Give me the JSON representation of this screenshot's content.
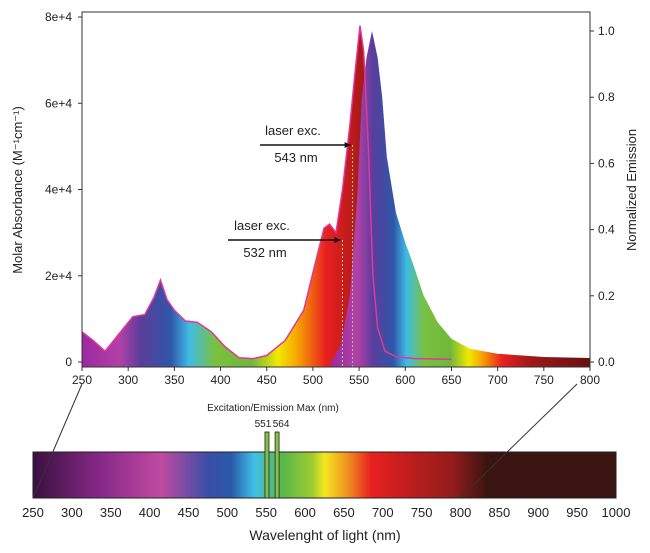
{
  "chart_data": [
    {
      "type": "area",
      "xlabel": "",
      "ylabel_left": "Molar Absorbance (M⁻¹cm⁻¹)",
      "ylabel_right": "Normalized Emission",
      "xlim": [
        250,
        800
      ],
      "ylim_left": [
        0,
        80000
      ],
      "ylim_right": [
        0,
        1.0
      ],
      "x_ticks": [
        "250",
        "300",
        "350",
        "400",
        "450",
        "500",
        "550",
        "600",
        "650",
        "700",
        "750",
        "800"
      ],
      "y_ticks_left": [
        "0",
        "2e+4",
        "4e+4",
        "6e+4",
        "8e+4"
      ],
      "y_ticks_right": [
        "0.0",
        "0.2",
        "0.4",
        "0.6",
        "0.8",
        "1.0"
      ],
      "grid": false,
      "series": [
        {
          "key": "absorbance",
          "axis": "left",
          "color": "#e0379b",
          "x": [
            250,
            262,
            275,
            290,
            305,
            318,
            328,
            335,
            342,
            350,
            362,
            375,
            390,
            405,
            420,
            435,
            450,
            470,
            490,
            505,
            512,
            518,
            525,
            532,
            540,
            546,
            551,
            555,
            560,
            565,
            570,
            578,
            590,
            610,
            650
          ],
          "y": [
            7000,
            5000,
            2500,
            6500,
            10500,
            11000,
            15000,
            19000,
            14500,
            12000,
            9500,
            9200,
            7000,
            3500,
            1000,
            800,
            1500,
            5000,
            12000,
            25000,
            31000,
            32000,
            30000,
            40000,
            55000,
            68000,
            78000,
            72000,
            50000,
            20000,
            8000,
            2500,
            1200,
            800,
            600
          ]
        },
        {
          "key": "emission",
          "axis": "right",
          "color": "#f5a000",
          "x": [
            520,
            530,
            540,
            548,
            553,
            558,
            564,
            570,
            575,
            580,
            590,
            600,
            608,
            620,
            635,
            650,
            670,
            700,
            750,
            800
          ],
          "y": [
            0,
            0.05,
            0.2,
            0.5,
            0.8,
            0.92,
            1.0,
            0.92,
            0.8,
            0.62,
            0.45,
            0.36,
            0.3,
            0.2,
            0.12,
            0.07,
            0.04,
            0.025,
            0.015,
            0.012
          ]
        }
      ],
      "annotations": [
        {
          "text1": "laser exc.",
          "text2": "543 nm",
          "x": 543
        },
        {
          "text1": "laser exc.",
          "text2": "532 nm",
          "x": 532
        }
      ]
    },
    {
      "type": "spectrum-bar",
      "xlabel": "Wavelenght of light (nm)",
      "x_ticks": [
        "250",
        "300",
        "350",
        "400",
        "450",
        "500",
        "550",
        "600",
        "650",
        "700",
        "750",
        "800",
        "850",
        "900",
        "950",
        "1000"
      ],
      "xlim": [
        250,
        1000
      ],
      "marker_title": "Excitation/Emission Max (nm)",
      "markers": [
        "551",
        "564"
      ],
      "marker_values": [
        551,
        564
      ]
    }
  ]
}
